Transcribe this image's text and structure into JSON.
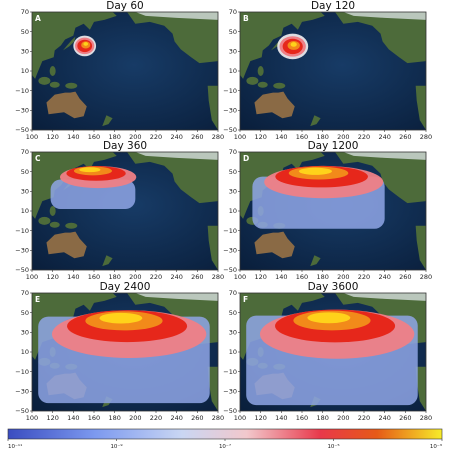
{
  "figure": {
    "panels": [
      {
        "label": "A",
        "title": "Day 60"
      },
      {
        "label": "B",
        "title": "Day 120"
      },
      {
        "label": "C",
        "title": "Day 360"
      },
      {
        "label": "D",
        "title": "Day 1200"
      },
      {
        "label": "E",
        "title": "Day 2400"
      },
      {
        "label": "F",
        "title": "Day 3600"
      }
    ],
    "x_ticks": [
      "100",
      "120",
      "140",
      "160",
      "180",
      "200",
      "220",
      "240",
      "260",
      "280"
    ],
    "y_ticks": [
      "70",
      "50",
      "30",
      "10",
      "−10",
      "−30",
      "−50"
    ],
    "colorbar_ticks": [
      "10⁻¹¹",
      "10⁻⁹",
      "10⁻⁷",
      "10⁻⁵",
      "10⁻³"
    ],
    "colors": {
      "ocean": "#0d2a4f",
      "land_green": "#4d6b3a",
      "land_brown": "#8a6a45",
      "snow": "#e8eef4",
      "plume_low": "#8fa6e6",
      "plume_mid": "#ef7f86",
      "plume_high": "#e6271b",
      "plume_peak": "#ffd21a"
    }
  }
}
